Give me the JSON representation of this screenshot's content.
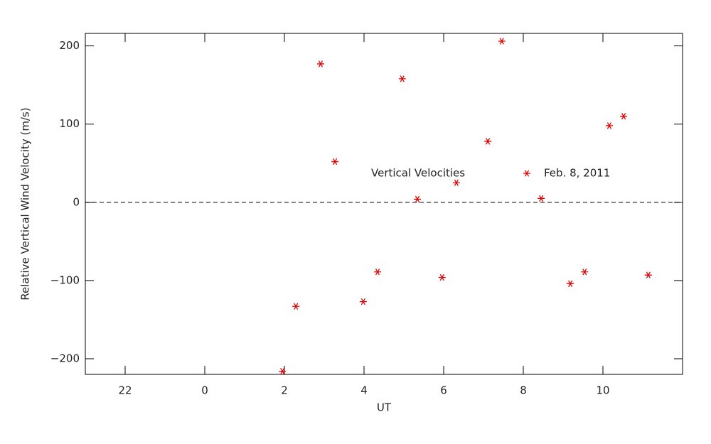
{
  "chart_data": {
    "type": "scatter",
    "x_label": "UT",
    "y_label": "Relative Vertical Wind Velocity (m/s)",
    "legend_title": "Vertical Velocities",
    "series": [
      {
        "name": "Feb. 8, 2011",
        "color": "#e00000",
        "x": [
          1.95,
          2.29,
          2.91,
          3.27,
          3.98,
          4.34,
          4.96,
          5.34,
          5.96,
          6.32,
          7.11,
          7.46,
          8.45,
          9.18,
          9.54,
          10.16,
          10.52,
          11.14
        ],
        "values": [
          -216,
          -133,
          177,
          52,
          -127,
          -89,
          158,
          4,
          -96,
          25,
          78,
          206,
          5,
          -104,
          -89,
          98,
          110,
          -93
        ]
      }
    ],
    "xlim": [
      -3,
      12
    ],
    "xticks": [
      {
        "value": -2,
        "label": "22"
      },
      0,
      2,
      4,
      6,
      8,
      10
    ],
    "ylim": [
      -220,
      216
    ],
    "yticks": [
      {
        "value": -200,
        "label": "−200"
      },
      {
        "value": -100,
        "label": "−100"
      },
      0,
      100,
      200
    ],
    "reference_line": 0,
    "grid": false
  }
}
